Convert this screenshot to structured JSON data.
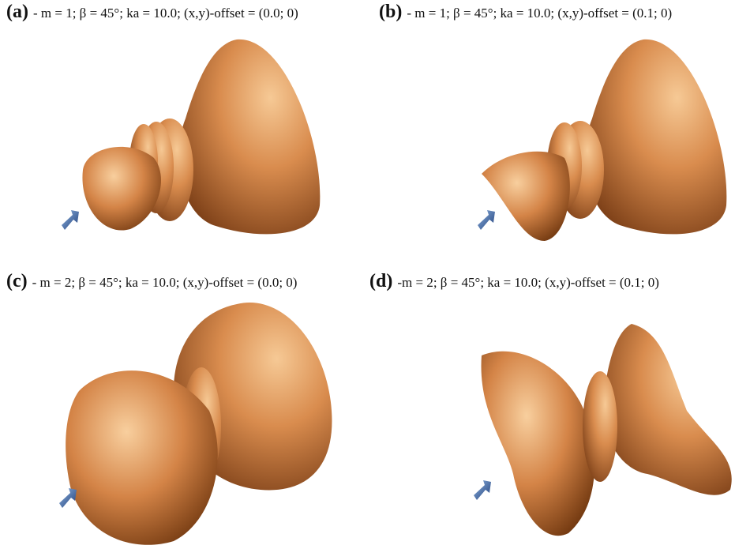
{
  "panels": [
    {
      "label": "(a)",
      "caption": "- m = 1; β = 45°; ka = 10.0; (x,y)-offset = (0.0; 0)"
    },
    {
      "label": "(b)",
      "caption": "- m = 1; β = 45°; ka = 10.0; (x,y)-offset = (0.1; 0)"
    },
    {
      "label": "(c)",
      "caption": "- m = 2; β = 45°; ka = 10.0; (x,y)-offset = (0.0; 0)"
    },
    {
      "label": "(d)",
      "caption": "-m = 2; β = 45°; ka = 10.0; (x,y)-offset = (0.1; 0)"
    }
  ]
}
